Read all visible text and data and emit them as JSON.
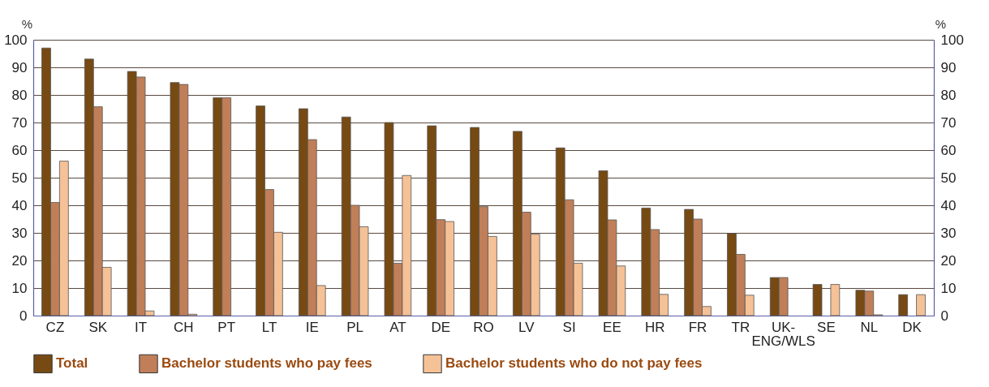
{
  "chart_data": {
    "type": "bar",
    "ylabel": "%",
    "y2label": "%",
    "categories": [
      "CZ",
      "SK",
      "IT",
      "CH",
      "PT",
      "LT",
      "IE",
      "PL",
      "AT",
      "DE",
      "RO",
      "LV",
      "SI",
      "EE",
      "HR",
      "FR",
      "TR",
      "UK-\nENG/WLS",
      "SE",
      "NL",
      "DK"
    ],
    "series": [
      {
        "name": "Total",
        "color": "#774a13",
        "values": [
          97,
          93,
          88.5,
          84.5,
          79,
          76,
          75,
          72,
          70,
          68.8,
          68.2,
          66.8,
          60.8,
          52.5,
          39,
          38.5,
          29.8,
          13.8,
          11.3,
          9.2,
          7.6
        ]
      },
      {
        "name": "Bachelor students who pay fees",
        "color": "#c07f58",
        "values": [
          41,
          75.7,
          86.5,
          83.8,
          79,
          45.7,
          63.8,
          40,
          19,
          34.8,
          39.5,
          37.5,
          42,
          34.7,
          31.2,
          35,
          22.2,
          13.8,
          null,
          8.9,
          null
        ]
      },
      {
        "name": "Bachelor students who do not pay fees",
        "color": "#f5c197",
        "values": [
          56,
          17.5,
          1.7,
          0.5,
          null,
          30.2,
          10.9,
          32.2,
          50.8,
          34.1,
          28.7,
          29.5,
          19,
          18,
          7.7,
          3.3,
          7.4,
          null,
          11.3,
          0.3,
          7.6
        ]
      }
    ],
    "ylim": [
      0,
      100
    ],
    "yticks": [
      0,
      10,
      20,
      30,
      40,
      50,
      60,
      70,
      80,
      90,
      100
    ],
    "y2lim": [
      0,
      100
    ],
    "y2ticks": [
      0,
      10,
      20,
      30,
      40,
      50,
      60,
      70,
      80,
      90,
      100
    ],
    "grid": "y",
    "legend": "bottom"
  }
}
